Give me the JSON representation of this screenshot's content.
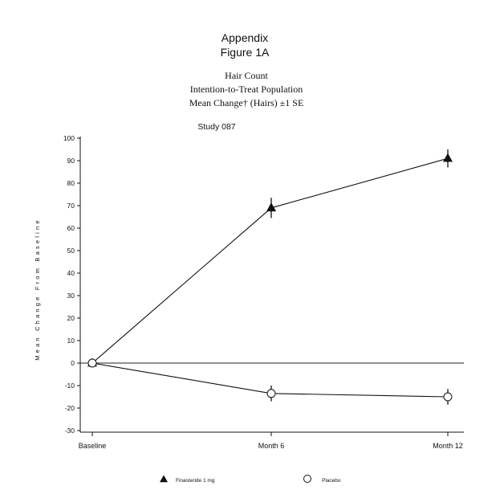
{
  "chart_data": {
    "type": "line",
    "heading": "Appendix",
    "figure_label": "Figure 1A",
    "title_lines": [
      "Hair Count",
      "Intention-to-Treat Population",
      "Mean Change† (Hairs) ±1 SE"
    ],
    "subtitle": "Study 087",
    "xlabel": "",
    "ylabel": "Mean Change From Baseline",
    "categories": [
      "Baseline",
      "Month 6",
      "Month 12"
    ],
    "y_ticks": [
      100,
      90,
      80,
      70,
      60,
      50,
      40,
      30,
      20,
      10,
      0,
      -10,
      -20,
      -30
    ],
    "ylim": [
      -30,
      100
    ],
    "grid": false,
    "zero_line": true,
    "legend_position": "bottom",
    "series": [
      {
        "name": "Finasteride 1 mg",
        "marker": "filled-triangle",
        "values": [
          0,
          69,
          91
        ],
        "se": [
          1.5,
          4.5,
          4
        ]
      },
      {
        "name": "Placebo",
        "marker": "open-circle",
        "values": [
          0,
          -13.5,
          -15
        ],
        "se": [
          1.5,
          3.5,
          3.5
        ]
      }
    ]
  }
}
